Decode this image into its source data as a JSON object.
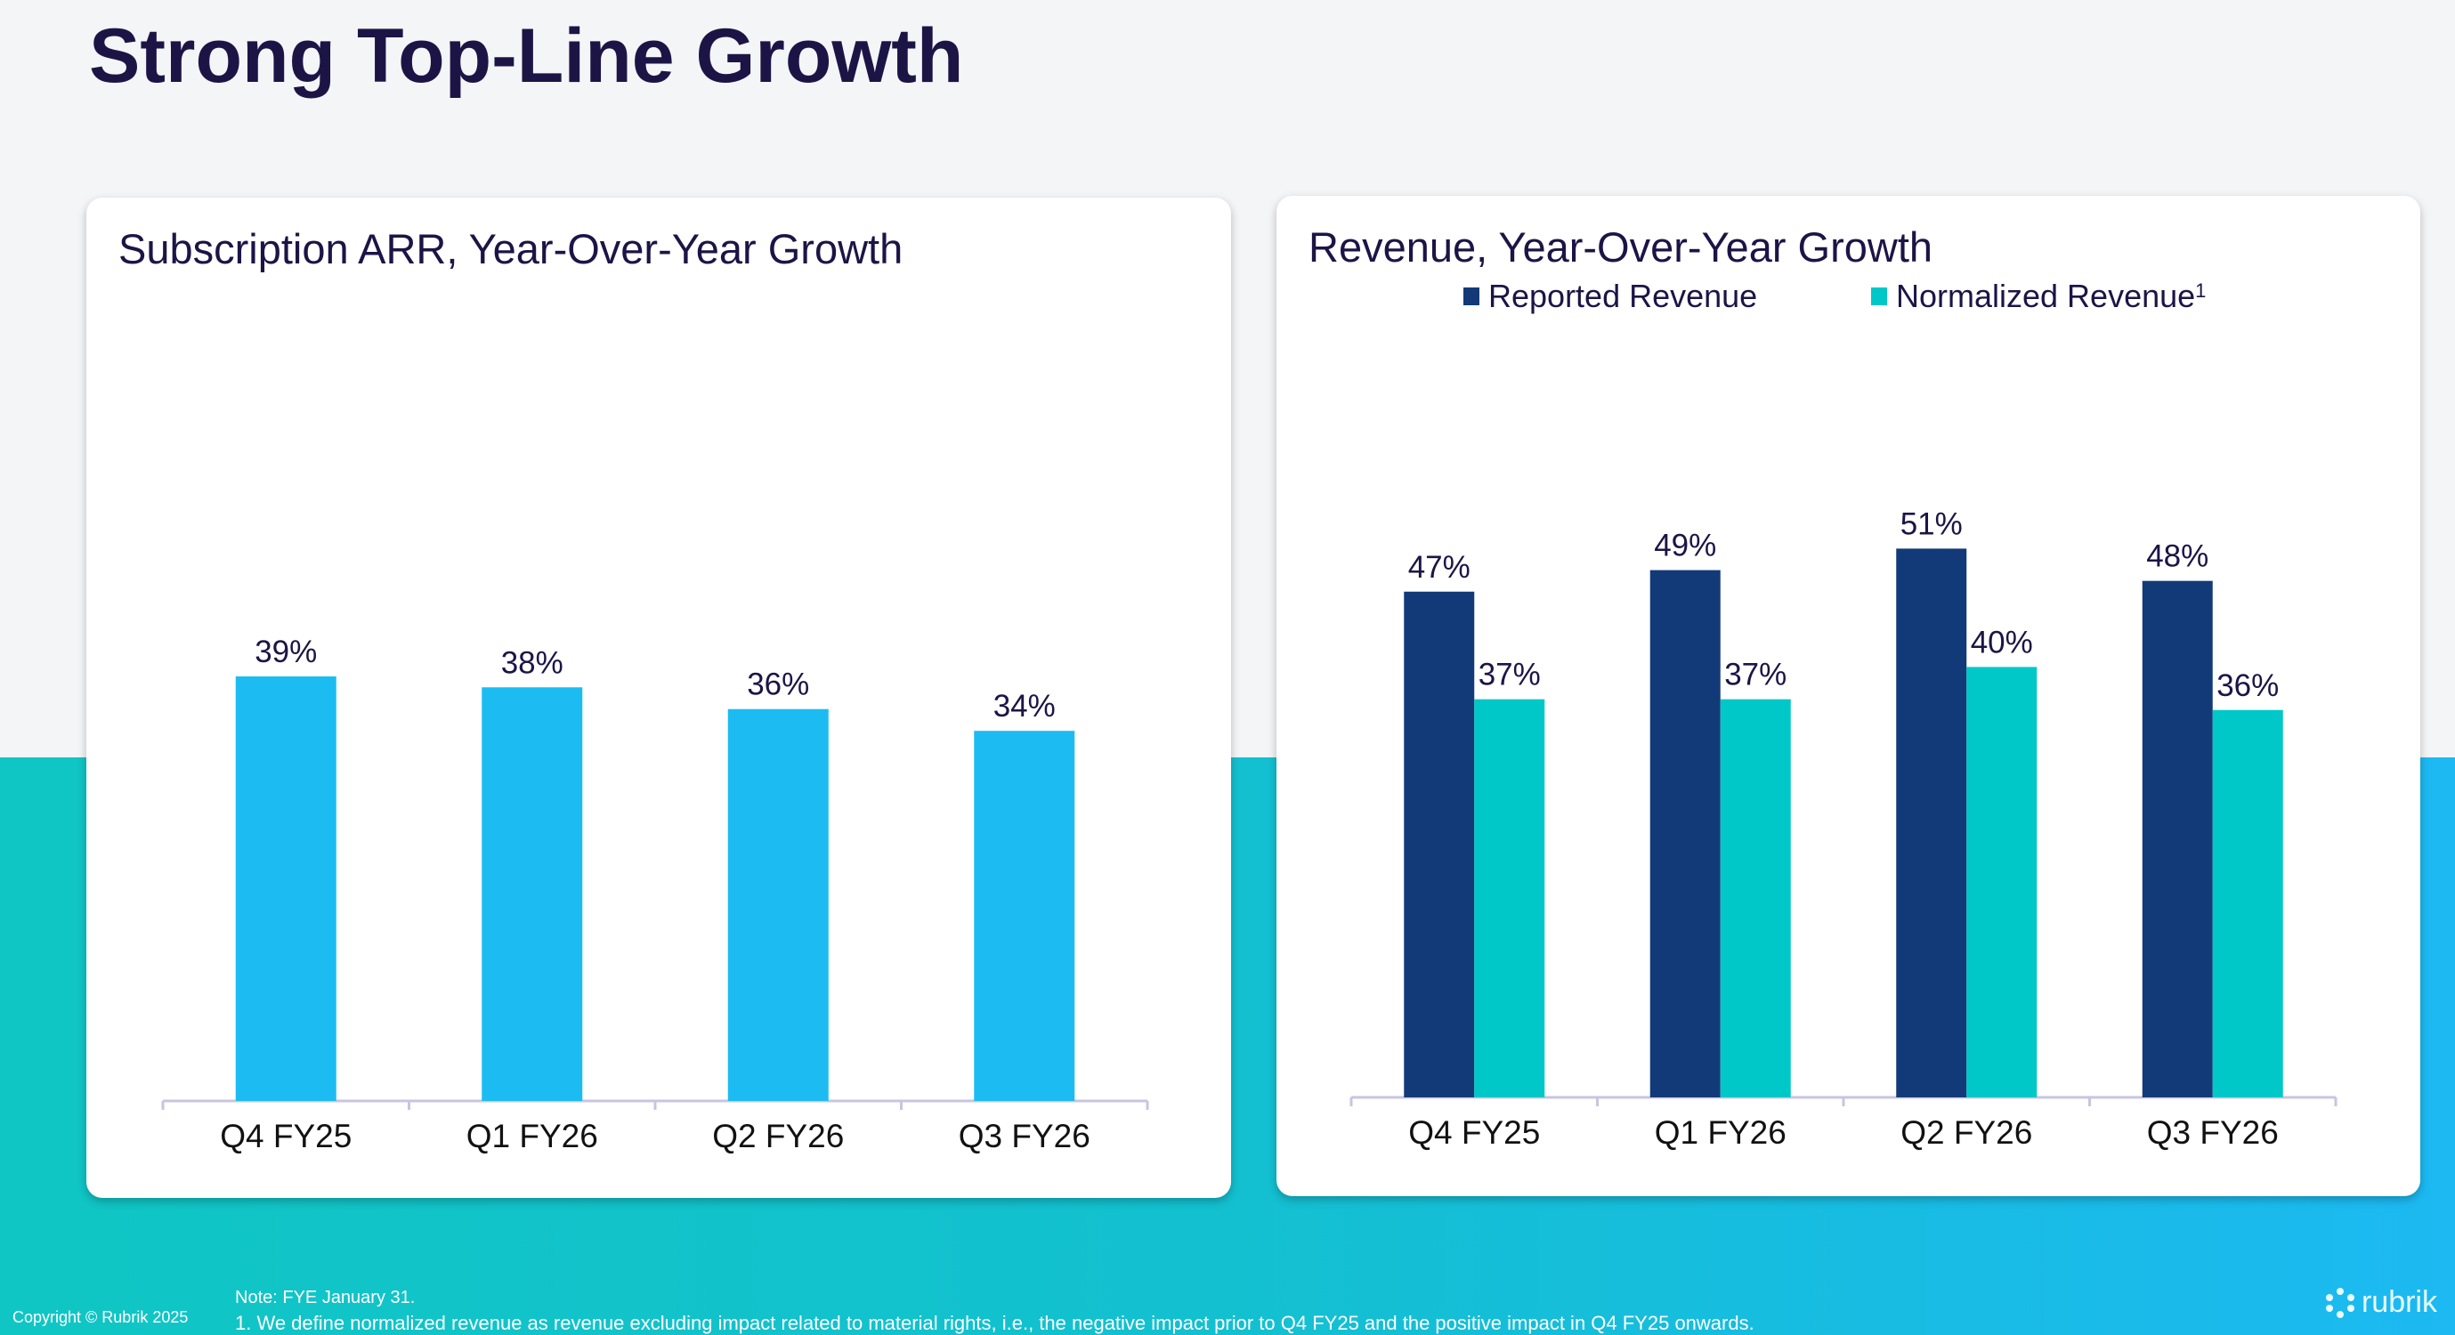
{
  "title": "Strong Top-Line Growth",
  "chart_data": [
    {
      "type": "bar",
      "title": "Subscription ARR, Year-Over-Year Growth",
      "categories": [
        "Q4 FY25",
        "Q1 FY26",
        "Q2 FY26",
        "Q3 FY26"
      ],
      "values": [
        39,
        38,
        36,
        34
      ],
      "labels": [
        "39%",
        "38%",
        "36%",
        "34%"
      ],
      "ylim": [
        0,
        78
      ],
      "color": "#1cbcf2"
    },
    {
      "type": "bar",
      "title": "Revenue, Year-Over-Year Growth",
      "categories": [
        "Q4 FY25",
        "Q1 FY26",
        "Q2 FY26",
        "Q3 FY26"
      ],
      "series": [
        {
          "name": "Reported Revenue",
          "values": [
            47,
            49,
            51,
            48
          ],
          "labels": [
            "47%",
            "49%",
            "51%",
            "48%"
          ],
          "color": "#133a78"
        },
        {
          "name": "Normalized Revenue",
          "sup": "1",
          "values": [
            37,
            37,
            40,
            36
          ],
          "labels": [
            "37%",
            "37%",
            "40%",
            "36%"
          ],
          "color": "#00c8c8"
        }
      ],
      "legend": "top",
      "ylim": [
        0,
        78
      ]
    }
  ],
  "footer": {
    "copyright": "Copyright © Rubrik 2025",
    "note": "Note: FYE January 31.",
    "footnote": "1. We define normalized revenue as revenue excluding impact related to material rights, i.e., the negative impact prior to Q4 FY25 and the positive impact in Q4 FY25 onwards.",
    "logo": "rubrik"
  }
}
